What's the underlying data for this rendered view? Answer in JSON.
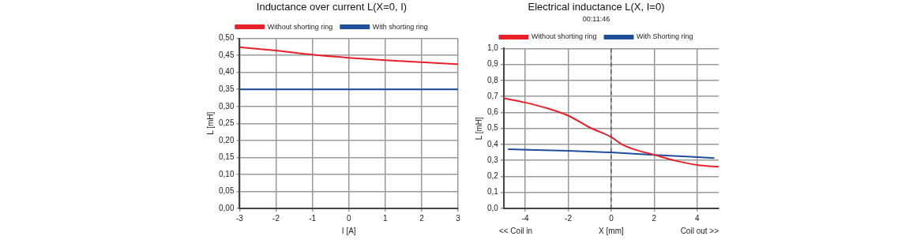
{
  "chart_data": [
    {
      "type": "line",
      "title": "Inductance over current L(X=0, I)",
      "xlabel": "I [A]",
      "ylabel": "L [mH]",
      "x": [
        -3,
        -2,
        -1,
        0,
        1,
        2,
        3
      ],
      "series": [
        {
          "name": "Without shorting ring",
          "color": "#e8202a",
          "values": [
            0.474,
            0.464,
            0.452,
            0.443,
            0.436,
            0.43,
            0.424
          ]
        },
        {
          "name": "With shorting ring",
          "color": "#1f4e9c",
          "values": [
            0.35,
            0.35,
            0.35,
            0.35,
            0.35,
            0.35,
            0.35
          ]
        }
      ],
      "xlim": [
        -3,
        3
      ],
      "xticks": [
        -3,
        -2,
        -1,
        0,
        1,
        2,
        3
      ],
      "ylim": [
        0,
        0.5
      ],
      "yticks": [
        {
          "value": 0,
          "label": "0,00"
        },
        {
          "value": 0.05,
          "label": "0,05"
        },
        {
          "value": 0.1,
          "label": "0,10"
        },
        {
          "value": 0.15,
          "label": "0,15"
        },
        {
          "value": 0.2,
          "label": "0,20"
        },
        {
          "value": 0.25,
          "label": "0,25"
        },
        {
          "value": 0.3,
          "label": "0,30"
        },
        {
          "value": 0.35,
          "label": "0,35"
        },
        {
          "value": 0.4,
          "label": "0,40"
        },
        {
          "value": 0.45,
          "label": "0,45"
        },
        {
          "value": 0.5,
          "label": "0,50"
        }
      ],
      "grid": true,
      "legend": "top",
      "marker": "none",
      "line_style": "solid"
    },
    {
      "type": "line",
      "title": "Electrical inductance L(X, I=0)",
      "subtitle": "00:11:46",
      "xlabel": "X [mm]",
      "ylabel": "L [mH]",
      "series": [
        {
          "name": "Without shorting ring",
          "color": "#e8202a",
          "x": [
            -5,
            -4,
            -3,
            -2,
            -1,
            0,
            0.5,
            1,
            2,
            3,
            4,
            5
          ],
          "values": [
            0.689,
            0.662,
            0.627,
            0.58,
            0.506,
            0.446,
            0.4,
            0.372,
            0.335,
            0.298,
            0.271,
            0.26
          ]
        },
        {
          "name": "With Shorting ring",
          "color": "#1f4e9c",
          "x": [
            -4.8,
            -2,
            0,
            2,
            4.8
          ],
          "values": [
            0.37,
            0.36,
            0.35,
            0.335,
            0.315
          ]
        }
      ],
      "xlim": [
        -5,
        5
      ],
      "xticks": [
        -4,
        -2,
        0,
        2,
        4
      ],
      "ylim": [
        0,
        1
      ],
      "yticks": [
        {
          "value": 0,
          "label": "0,0"
        },
        {
          "value": 0.1,
          "label": "0,1"
        },
        {
          "value": 0.2,
          "label": "0,2"
        },
        {
          "value": 0.3,
          "label": "0,3"
        },
        {
          "value": 0.4,
          "label": "0,4"
        },
        {
          "value": 0.5,
          "label": "0,5"
        },
        {
          "value": 0.6,
          "label": "0,6"
        },
        {
          "value": 0.7,
          "label": "0,7"
        },
        {
          "value": 0.8,
          "label": "0,8"
        },
        {
          "value": 0.9,
          "label": "0,9"
        },
        {
          "value": 1,
          "label": "1,0"
        }
      ],
      "ref_lines": [
        {
          "axis": "x",
          "value": 0,
          "color": "#333333",
          "line_style": "dashed"
        }
      ],
      "annotations": [
        "<< Coil in",
        "Coil out >>"
      ],
      "grid": true,
      "legend": "top",
      "marker": "none",
      "line_style": "solid"
    }
  ]
}
